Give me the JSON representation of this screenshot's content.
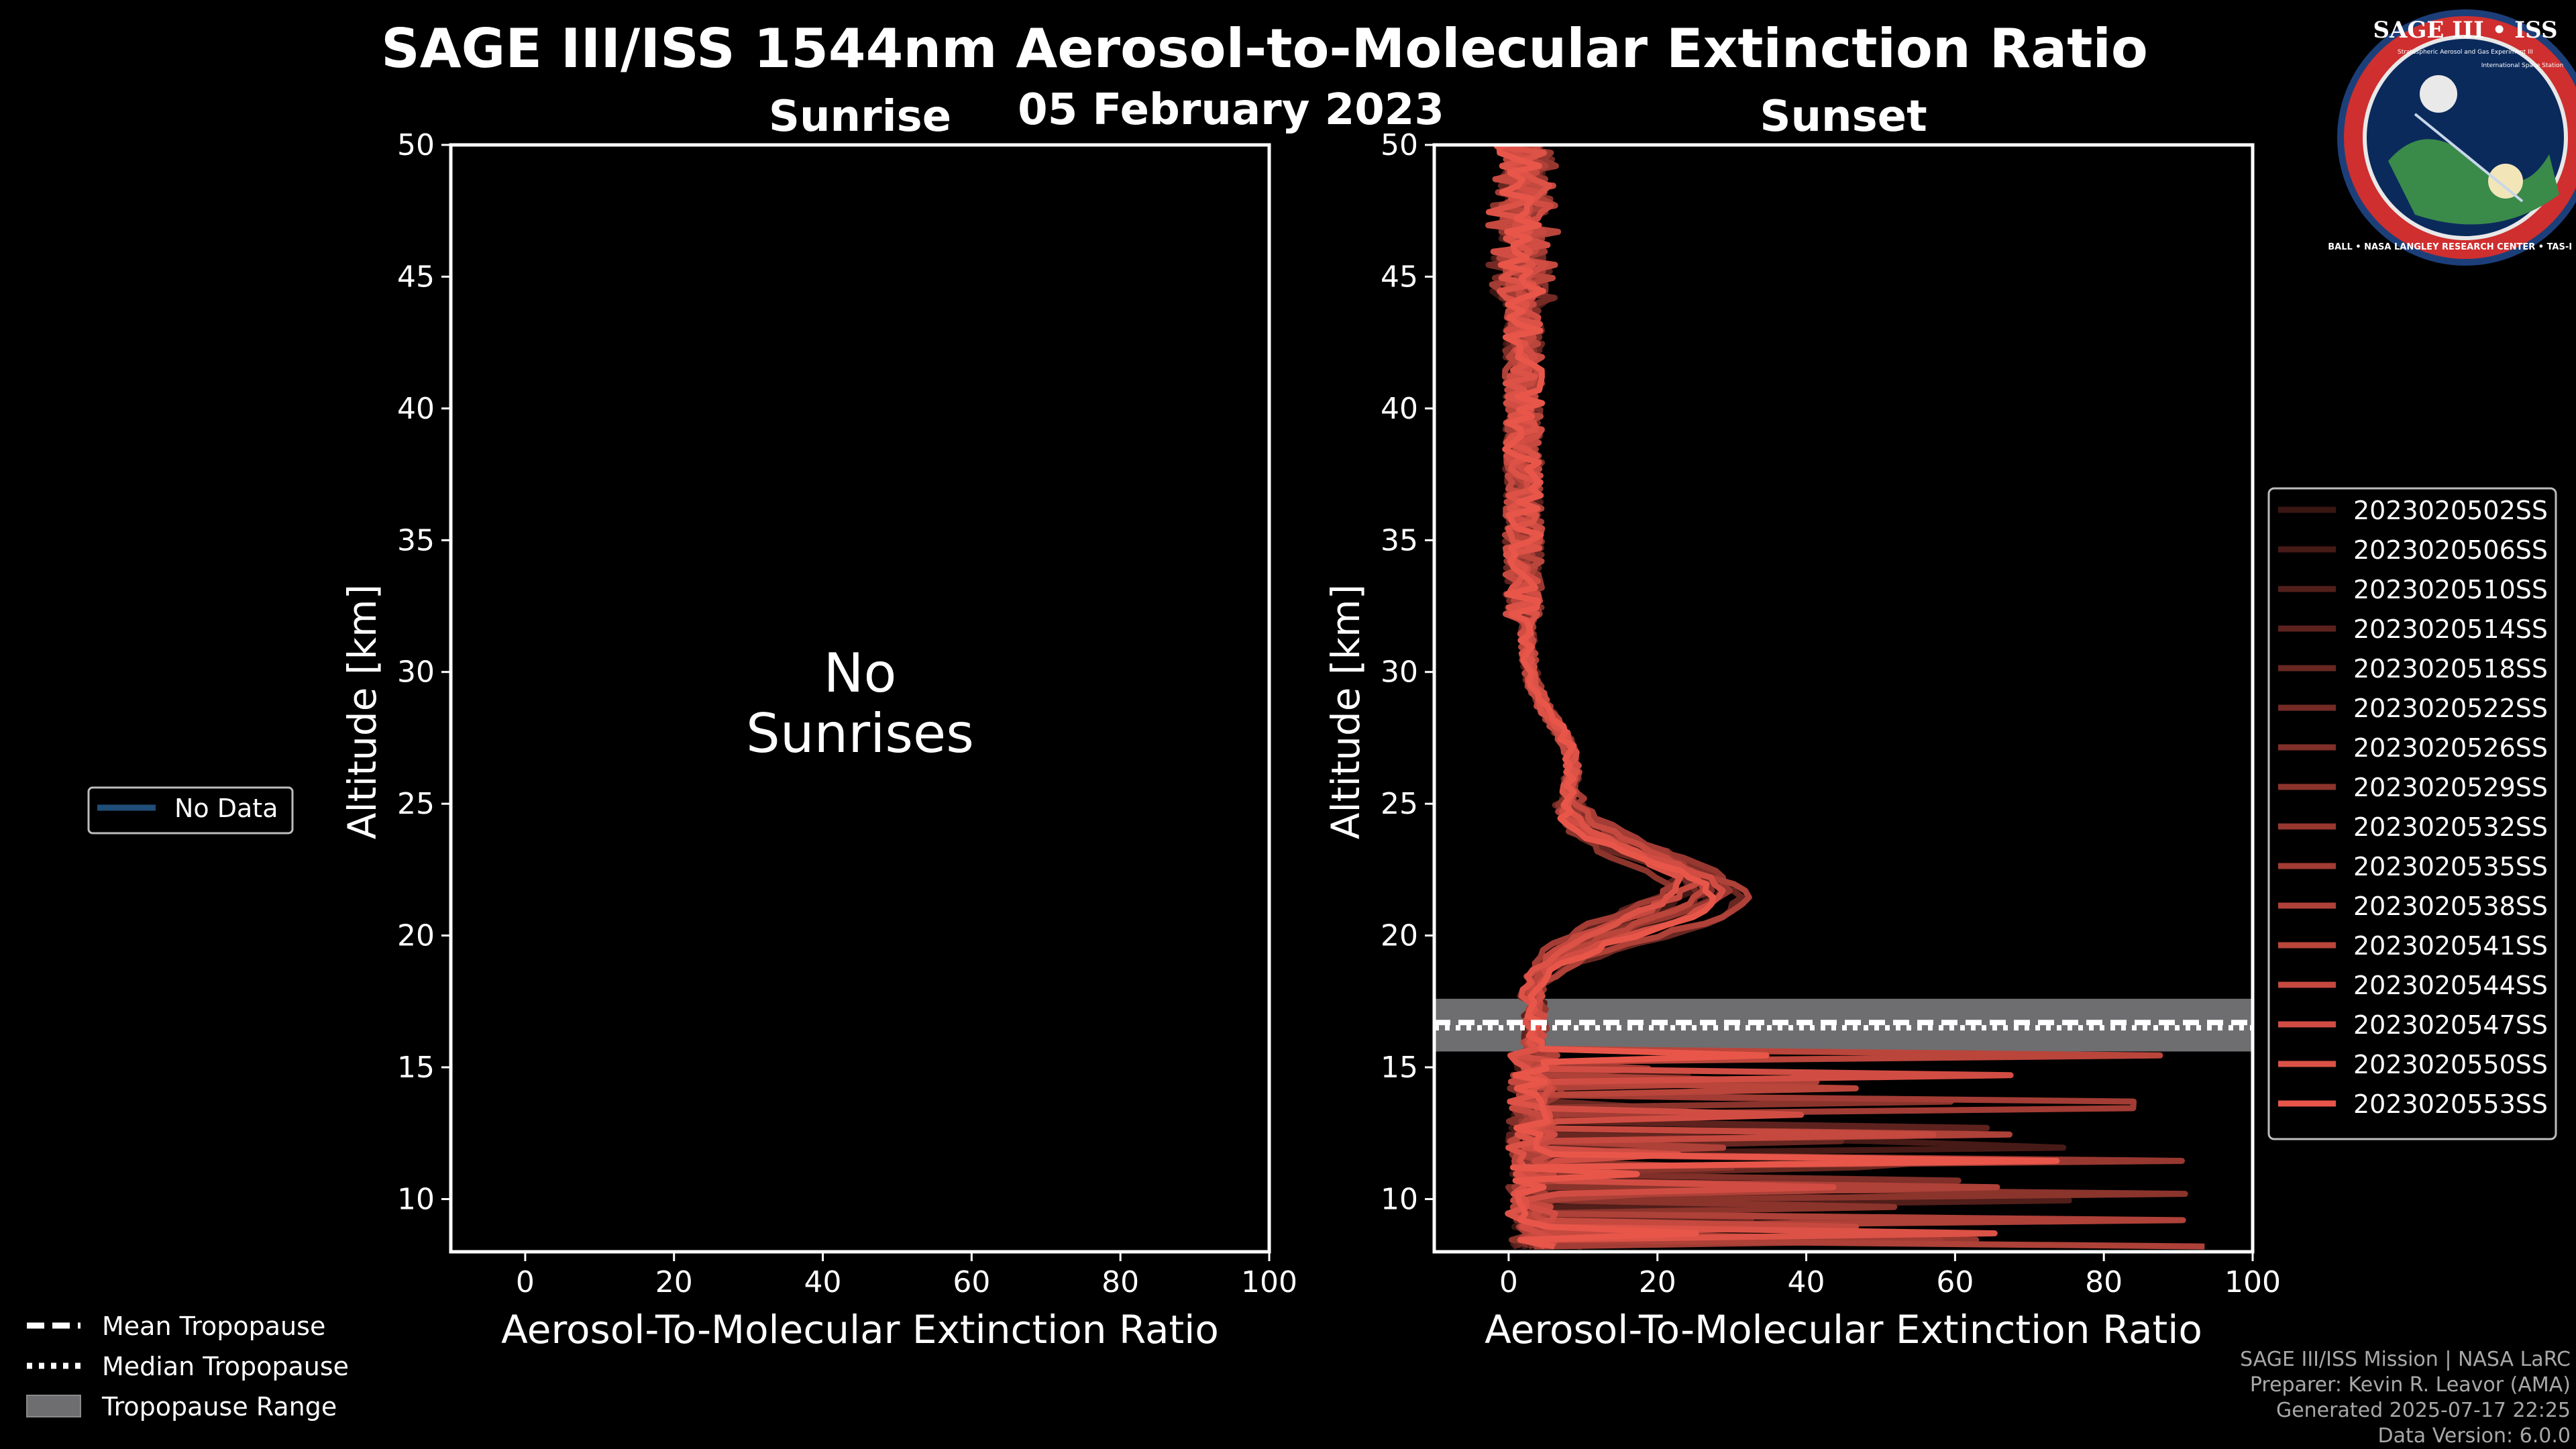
{
  "header": {
    "title": "SAGE III/ISS 1544nm Aerosol-to-Molecular Extinction Ratio",
    "date": "05 February 2023"
  },
  "logo": {
    "name": "SAGE III • ISS",
    "tagline": "Stratospheric Aerosol and Gas Experiment III",
    "tagline2": "International Space Station",
    "ring": "BALL • NASA LANGLEY RESEARCH CENTER • TAS-I • ESA"
  },
  "colors": {
    "background": "#000000",
    "profile": "#e8564a",
    "tropopause_band": "#6e6e70",
    "no_data": "#1f4e79"
  },
  "left_legend": {
    "no_data": "No Data"
  },
  "bottom_legend": {
    "mean": "Mean Tropopause",
    "median": "Median Tropopause",
    "range": "Tropopause Range"
  },
  "credits": [
    "SAGE III/ISS Mission | NASA LaRC",
    "Preparer: Kevin R. Leavor (AMA)",
    "Generated 2025-07-17 22:25",
    "Data Version: 6.0.0"
  ],
  "chart_data": [
    {
      "type": "line",
      "title": "Sunrise",
      "xlabel": "Aerosol-To-Molecular Extinction Ratio",
      "ylabel": "Altitude [km]",
      "xlim": [
        -10,
        100
      ],
      "ylim": [
        8,
        50
      ],
      "xticks": [
        0,
        20,
        40,
        60,
        80,
        100
      ],
      "yticks": [
        10,
        15,
        20,
        25,
        30,
        35,
        40,
        45,
        50
      ],
      "empty_message": [
        "No",
        "Sunrises"
      ],
      "series": []
    },
    {
      "type": "line",
      "title": "Sunset",
      "xlabel": "Aerosol-To-Molecular Extinction Ratio",
      "ylabel": "Altitude [km]",
      "xlim": [
        -10,
        100
      ],
      "ylim": [
        8,
        50
      ],
      "xticks": [
        0,
        20,
        40,
        60,
        80,
        100
      ],
      "yticks": [
        10,
        15,
        20,
        25,
        30,
        35,
        40,
        45,
        50
      ],
      "tropopause": {
        "mean_km": 16.7,
        "median_km": 16.5,
        "min_km": 15.6,
        "max_km": 17.6
      },
      "series": [
        {
          "name": "2023020502SS",
          "peak": 24,
          "peak_alt": 21.5,
          "base": 3.5
        },
        {
          "name": "2023020506SS",
          "peak": 22,
          "peak_alt": 22.0,
          "base": 3.0
        },
        {
          "name": "2023020510SS",
          "peak": 26,
          "peak_alt": 21.8,
          "base": 4.0
        },
        {
          "name": "2023020514SS",
          "peak": 20,
          "peak_alt": 22.2,
          "base": 2.5
        },
        {
          "name": "2023020518SS",
          "peak": 28,
          "peak_alt": 21.3,
          "base": 3.2
        },
        {
          "name": "2023020522SS",
          "peak": 23,
          "peak_alt": 21.7,
          "base": 3.8
        },
        {
          "name": "2023020526SS",
          "peak": 25,
          "peak_alt": 22.0,
          "base": 2.8
        },
        {
          "name": "2023020529SS",
          "peak": 19,
          "peak_alt": 21.5,
          "base": 3.4
        },
        {
          "name": "2023020532SS",
          "peak": 27,
          "peak_alt": 21.9,
          "base": 4.2
        },
        {
          "name": "2023020535SS",
          "peak": 21,
          "peak_alt": 22.3,
          "base": 3.0
        },
        {
          "name": "2023020538SS",
          "peak": 29,
          "peak_alt": 21.4,
          "base": 3.6
        },
        {
          "name": "2023020541SS",
          "peak": 24,
          "peak_alt": 21.8,
          "base": 2.9
        },
        {
          "name": "2023020544SS",
          "peak": 22,
          "peak_alt": 22.1,
          "base": 3.3
        },
        {
          "name": "2023020547SS",
          "peak": 26,
          "peak_alt": 21.6,
          "base": 3.9
        },
        {
          "name": "2023020550SS",
          "peak": 20,
          "peak_alt": 21.9,
          "base": 2.7
        },
        {
          "name": "2023020553SS",
          "peak": 25,
          "peak_alt": 21.5,
          "base": 3.5
        }
      ]
    }
  ]
}
